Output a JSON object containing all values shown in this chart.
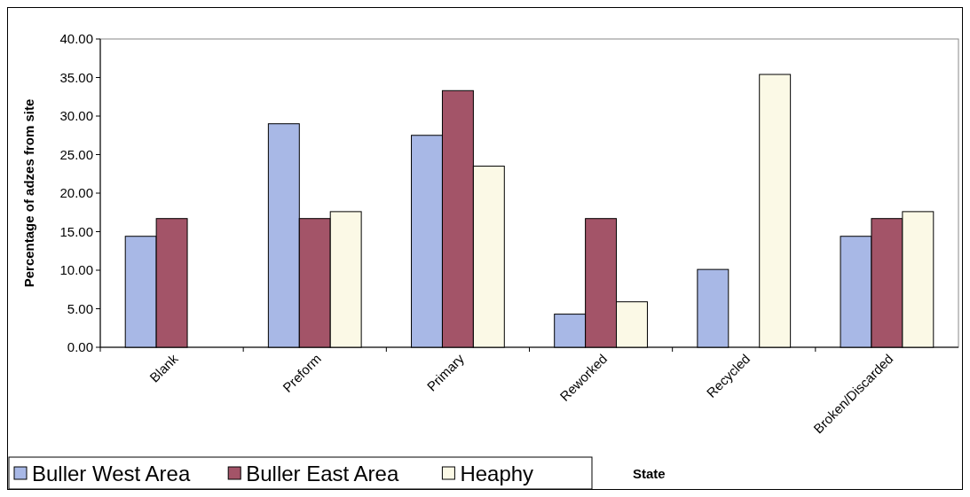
{
  "chart_data": {
    "type": "bar",
    "xlabel": "State",
    "ylabel": "Percentage of adzes from site",
    "categories": [
      "Blank",
      "Preform",
      "Primary",
      "Reworked",
      "Recycled",
      "Broken/Discarded"
    ],
    "series": [
      {
        "name": "Buller West Area",
        "color": "#a8b8e6",
        "values": [
          14.4,
          29.0,
          27.5,
          4.3,
          10.1,
          14.4
        ]
      },
      {
        "name": "Buller East Area",
        "color": "#a35468",
        "values": [
          16.7,
          16.7,
          33.3,
          16.7,
          null,
          16.7
        ]
      },
      {
        "name": "Heaphy",
        "color": "#fbf9e6",
        "values": [
          null,
          17.6,
          23.5,
          5.9,
          35.4,
          17.6
        ]
      }
    ],
    "ylim": [
      0,
      40
    ],
    "yticks": [
      {
        "value": 0,
        "label": "0.00"
      },
      {
        "value": 5,
        "label": "5.00"
      },
      {
        "value": 10,
        "label": "10.00"
      },
      {
        "value": 15,
        "label": "15.00"
      },
      {
        "value": 20,
        "label": "20.00"
      },
      {
        "value": 25,
        "label": "25.00"
      },
      {
        "value": 30,
        "label": "30.00"
      },
      {
        "value": 35,
        "label": "35.00"
      },
      {
        "value": 40,
        "label": "40.00"
      }
    ],
    "legend": "bottom left"
  }
}
